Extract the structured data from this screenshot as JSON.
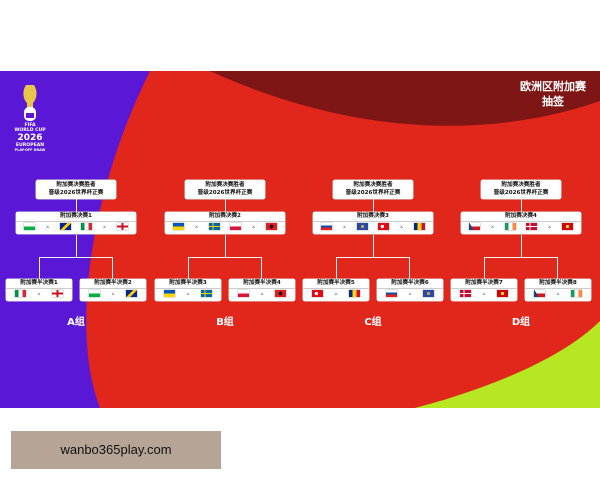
{
  "poster": {
    "title_line1": "欧洲区附加赛",
    "title_line2": "抽签",
    "logo": {
      "line1": "WORLD CUP",
      "year": "2026",
      "line2": "EUROPEAN",
      "line3": "PLAY-OFF DRAW",
      "fifa": "FIFA"
    },
    "winner_label_1": "附加赛决赛胜者",
    "winner_label_2": "晋级2026世界杯正赛",
    "paths": [
      {
        "final_label": "附加赛决赛1",
        "group": "A组",
        "final_flags": [
          "wales-flag",
          "bosnia-flag",
          "italy-flag",
          "england-flag"
        ],
        "semis": [
          {
            "label": "附加赛半决赛1",
            "flags": [
              "italy-flag",
              "england-flag"
            ]
          },
          {
            "label": "附加赛半决赛2",
            "flags": [
              "wales-flag",
              "bosnia-flag"
            ]
          }
        ]
      },
      {
        "final_label": "附加赛决赛2",
        "group": "B组",
        "final_flags": [
          "ukraine-flag",
          "sweden-flag",
          "poland-flag",
          "albania-flag"
        ],
        "semis": [
          {
            "label": "附加赛半决赛3",
            "flags": [
              "ukraine-flag",
              "sweden-flag"
            ]
          },
          {
            "label": "附加赛半决赛4",
            "flags": [
              "poland-flag",
              "albania-flag"
            ]
          }
        ]
      },
      {
        "final_label": "附加赛决赛3",
        "group": "C组",
        "final_flags": [
          "slovakia-flag",
          "kosovo-flag",
          "turkey-flag",
          "romania-flag"
        ],
        "semis": [
          {
            "label": "附加赛半决赛5",
            "flags": [
              "turkey-flag",
              "romania-flag"
            ]
          },
          {
            "label": "附加赛半决赛6",
            "flags": [
              "slovakia-flag",
              "kosovo-flag"
            ]
          }
        ]
      },
      {
        "final_label": "附加赛决赛4",
        "group": "D组",
        "final_flags": [
          "czechia-flag",
          "ireland-flag",
          "denmark-flag",
          "north-macedonia-flag"
        ],
        "semis": [
          {
            "label": "附加赛半决赛7",
            "flags": [
              "denmark-flag",
              "north-macedonia-flag"
            ]
          },
          {
            "label": "附加赛半决赛8",
            "flags": [
              "czechia-flag",
              "ireland-flag"
            ]
          }
        ]
      }
    ]
  },
  "footer": {
    "text": "wanbo365play.com"
  }
}
